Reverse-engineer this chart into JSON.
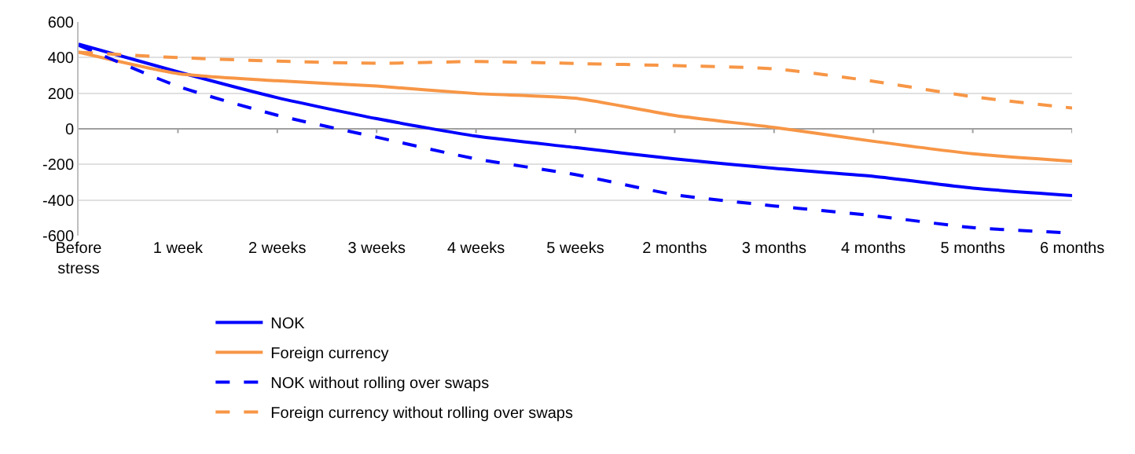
{
  "chart_data": {
    "type": "line",
    "categories": [
      "Before\nstress",
      "1 week",
      "2 weeks",
      "3 weeks",
      "4 weeks",
      "5 weeks",
      "2 months",
      "3 months",
      "4 months",
      "5 months",
      "6 months"
    ],
    "series": [
      {
        "name": "NOK",
        "color": "#0000ff",
        "line_style": "solid",
        "values": [
          476,
          320,
          175,
          57,
          -41,
          -105,
          -169,
          -222,
          -267,
          -333,
          -375
        ]
      },
      {
        "name": "Foreign currency",
        "color": "#f79646",
        "line_style": "solid",
        "values": [
          430,
          310,
          270,
          240,
          198,
          172,
          75,
          8,
          -70,
          -140,
          -182
        ]
      },
      {
        "name": "NOK without rolling over swaps",
        "color": "#0000ff",
        "line_style": "dashed",
        "values": [
          470,
          239,
          76,
          -47,
          -169,
          -257,
          -370,
          -433,
          -488,
          -555,
          -585
        ]
      },
      {
        "name": "Foreign currency without rolling over swaps",
        "color": "#f79646",
        "line_style": "dashed",
        "values": [
          430,
          400,
          380,
          368,
          378,
          367,
          355,
          337,
          267,
          180,
          117
        ]
      }
    ],
    "ylim": [
      -600,
      600
    ],
    "yticks": [
      -600,
      -400,
      -200,
      0,
      200,
      400,
      600
    ],
    "grid": "y",
    "legend": "bottom",
    "marker": "none"
  }
}
